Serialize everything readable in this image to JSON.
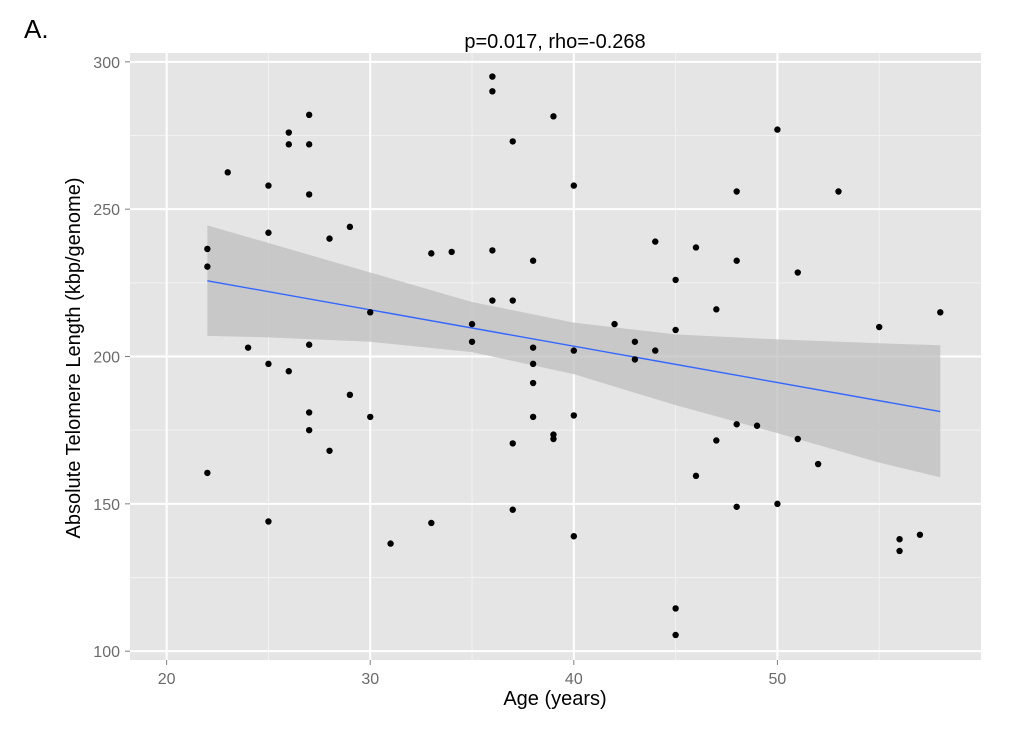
{
  "panel_label": "A.",
  "chart_data": {
    "type": "scatter",
    "title": "p=0.017, rho=-0.268",
    "xlabel": "Age (years)",
    "ylabel": "Absolute Telomere Length (kbp/genome)",
    "xlim": [
      18.2,
      60
    ],
    "ylim": [
      97,
      303
    ],
    "xticks": [
      20,
      30,
      40,
      50
    ],
    "yticks": [
      100,
      150,
      200,
      250,
      300
    ],
    "grid": true,
    "legend": "none",
    "colors": {
      "panel": "#e5e5e5",
      "grid": "#ffffff",
      "point": "#000000",
      "fit_line": "#3366ff",
      "ribbon": "#bdbdbd"
    },
    "points": [
      {
        "x": 22,
        "y": 236.5
      },
      {
        "x": 22,
        "y": 230.5
      },
      {
        "x": 22,
        "y": 160.5
      },
      {
        "x": 23,
        "y": 262.5
      },
      {
        "x": 24,
        "y": 203
      },
      {
        "x": 25,
        "y": 258
      },
      {
        "x": 25,
        "y": 242
      },
      {
        "x": 25,
        "y": 197.5
      },
      {
        "x": 25,
        "y": 144
      },
      {
        "x": 26,
        "y": 276
      },
      {
        "x": 26,
        "y": 272
      },
      {
        "x": 26,
        "y": 195
      },
      {
        "x": 27,
        "y": 282
      },
      {
        "x": 27,
        "y": 272
      },
      {
        "x": 27,
        "y": 255
      },
      {
        "x": 27,
        "y": 204
      },
      {
        "x": 27,
        "y": 181
      },
      {
        "x": 27,
        "y": 175
      },
      {
        "x": 28,
        "y": 240
      },
      {
        "x": 28,
        "y": 168
      },
      {
        "x": 29,
        "y": 244
      },
      {
        "x": 29,
        "y": 187
      },
      {
        "x": 30,
        "y": 215
      },
      {
        "x": 30,
        "y": 179.5
      },
      {
        "x": 31,
        "y": 136.5
      },
      {
        "x": 33,
        "y": 235
      },
      {
        "x": 33,
        "y": 143.5
      },
      {
        "x": 34,
        "y": 235.5
      },
      {
        "x": 35,
        "y": 211
      },
      {
        "x": 35,
        "y": 205
      },
      {
        "x": 36,
        "y": 295
      },
      {
        "x": 36,
        "y": 290
      },
      {
        "x": 36,
        "y": 236
      },
      {
        "x": 36,
        "y": 219
      },
      {
        "x": 37,
        "y": 273
      },
      {
        "x": 37,
        "y": 219
      },
      {
        "x": 37,
        "y": 170.5
      },
      {
        "x": 37,
        "y": 148
      },
      {
        "x": 38,
        "y": 232.5
      },
      {
        "x": 38,
        "y": 203
      },
      {
        "x": 38,
        "y": 197.5
      },
      {
        "x": 38,
        "y": 191
      },
      {
        "x": 38,
        "y": 179.5
      },
      {
        "x": 39,
        "y": 281.5
      },
      {
        "x": 39,
        "y": 173.5
      },
      {
        "x": 39,
        "y": 172
      },
      {
        "x": 40,
        "y": 258
      },
      {
        "x": 40,
        "y": 202
      },
      {
        "x": 40,
        "y": 180
      },
      {
        "x": 40,
        "y": 139
      },
      {
        "x": 42,
        "y": 211
      },
      {
        "x": 43,
        "y": 205
      },
      {
        "x": 43,
        "y": 199
      },
      {
        "x": 44,
        "y": 239
      },
      {
        "x": 44,
        "y": 202
      },
      {
        "x": 45,
        "y": 226
      },
      {
        "x": 45,
        "y": 209
      },
      {
        "x": 45,
        "y": 114.5
      },
      {
        "x": 45,
        "y": 105.5
      },
      {
        "x": 46,
        "y": 237
      },
      {
        "x": 46,
        "y": 159.5
      },
      {
        "x": 47,
        "y": 216
      },
      {
        "x": 47,
        "y": 171.5
      },
      {
        "x": 48,
        "y": 256
      },
      {
        "x": 48,
        "y": 232.5
      },
      {
        "x": 48,
        "y": 177
      },
      {
        "x": 48,
        "y": 149
      },
      {
        "x": 49,
        "y": 176.5
      },
      {
        "x": 50,
        "y": 277
      },
      {
        "x": 50,
        "y": 150
      },
      {
        "x": 51,
        "y": 228.5
      },
      {
        "x": 51,
        "y": 172
      },
      {
        "x": 52,
        "y": 163.5
      },
      {
        "x": 53,
        "y": 256
      },
      {
        "x": 55,
        "y": 210
      },
      {
        "x": 56,
        "y": 138
      },
      {
        "x": 56,
        "y": 134
      },
      {
        "x": 57,
        "y": 139.5
      },
      {
        "x": 58,
        "y": 215
      }
    ],
    "fit": {
      "x": [
        22,
        58
      ],
      "y": [
        225.7,
        181.3
      ]
    },
    "ribbon": {
      "x": [
        22,
        25,
        30,
        35,
        40,
        45,
        50,
        55,
        58
      ],
      "upper": [
        244.5,
        238.5,
        228.5,
        218.5,
        211.5,
        207.5,
        205.8,
        204.5,
        203.8
      ],
      "lower": [
        207,
        206.5,
        205,
        201.5,
        194,
        183.5,
        174,
        164,
        159
      ]
    }
  }
}
